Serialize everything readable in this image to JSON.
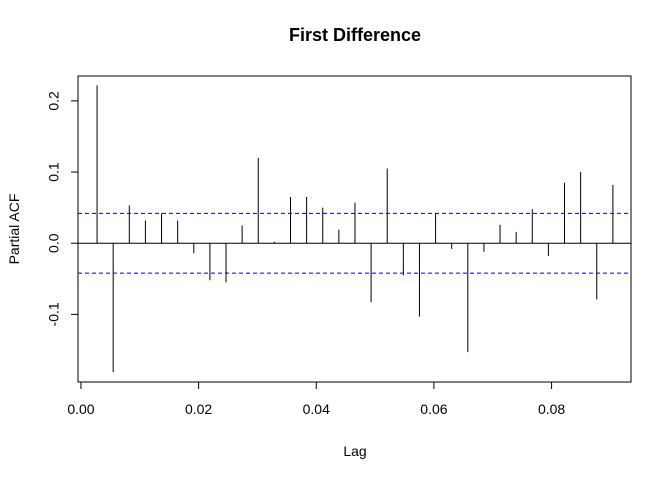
{
  "chart_data": {
    "type": "bar",
    "title": "First Difference",
    "xlabel": "Lag",
    "ylabel": "Partial ACF",
    "xlim": [
      -0.0005,
      0.0935
    ],
    "ylim": [
      -0.195,
      0.235
    ],
    "x_ticks": [
      0.0,
      0.02,
      0.04,
      0.06,
      0.08
    ],
    "x_tick_labels": [
      "0.00",
      "0.02",
      "0.04",
      "0.06",
      "0.08"
    ],
    "y_ticks": [
      -0.1,
      0.0,
      0.1,
      0.2
    ],
    "y_tick_labels": [
      "-0.1",
      "0.0",
      "0.1",
      "0.2"
    ],
    "confidence_band": 0.042,
    "confidence_color": "#0000cc",
    "bar_color": "#000000",
    "x": [
      0.00274,
      0.00548,
      0.00822,
      0.01096,
      0.0137,
      0.01644,
      0.01918,
      0.02192,
      0.02466,
      0.0274,
      0.03014,
      0.03288,
      0.03562,
      0.03836,
      0.0411,
      0.04384,
      0.04658,
      0.04932,
      0.05206,
      0.0548,
      0.05754,
      0.06028,
      0.06302,
      0.06576,
      0.0685,
      0.07124,
      0.07398,
      0.07672,
      0.07946,
      0.0822,
      0.08494,
      0.08768,
      0.09042
    ],
    "values": [
      0.222,
      -0.181,
      0.053,
      0.032,
      0.042,
      0.032,
      -0.014,
      -0.052,
      -0.055,
      0.025,
      0.12,
      0.002,
      0.065,
      0.065,
      0.05,
      0.019,
      0.057,
      -0.083,
      0.105,
      -0.045,
      -0.103,
      0.042,
      -0.008,
      -0.153,
      -0.012,
      0.026,
      0.016,
      0.048,
      -0.018,
      0.085,
      0.1,
      -0.079,
      0.082
    ]
  }
}
